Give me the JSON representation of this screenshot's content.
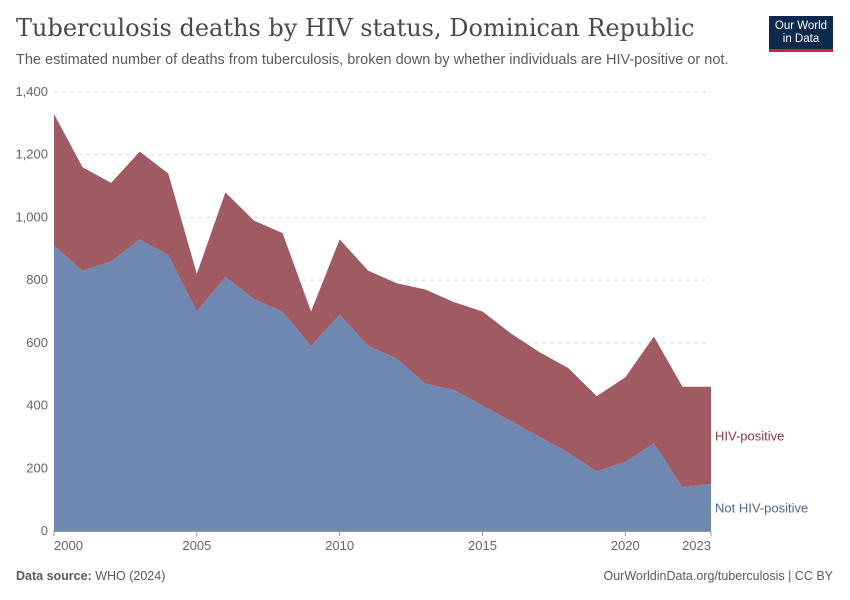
{
  "header": {
    "title": "Tuberculosis deaths by HIV status, Dominican Republic",
    "subtitle": "The estimated number of deaths from tuberculosis, broken down by whether individuals are HIV-positive or not."
  },
  "logo": {
    "line1": "Our World",
    "line2": "in Data"
  },
  "footer": {
    "source_label": "Data source:",
    "source_value": "WHO (2024)",
    "link": "OurWorldinData.org/tuberculosis | CC BY"
  },
  "chart_data": {
    "type": "area",
    "stacked": true,
    "x": [
      2000,
      2001,
      2002,
      2003,
      2004,
      2005,
      2006,
      2007,
      2008,
      2009,
      2010,
      2011,
      2012,
      2013,
      2014,
      2015,
      2016,
      2017,
      2018,
      2019,
      2020,
      2021,
      2022,
      2023
    ],
    "x_ticks": [
      "2000",
      "2005",
      "2010",
      "2015",
      "2020",
      "2023"
    ],
    "x_tick_values": [
      2000,
      2005,
      2010,
      2015,
      2020,
      2023
    ],
    "y_ticks": [
      "0",
      "200",
      "400",
      "600",
      "800",
      "1,000",
      "1,200",
      "1,400"
    ],
    "y_tick_values": [
      0,
      200,
      400,
      600,
      800,
      1000,
      1200,
      1400
    ],
    "ylim": [
      0,
      1400
    ],
    "xlim": [
      2000,
      2023
    ],
    "grid": "horizontal dashed",
    "series": [
      {
        "name": "Not HIV-positive",
        "color": "#6f88b2",
        "values": [
          910,
          830,
          860,
          930,
          880,
          700,
          810,
          740,
          700,
          590,
          690,
          590,
          550,
          470,
          450,
          400,
          350,
          300,
          250,
          190,
          220,
          280,
          140,
          150
        ]
      },
      {
        "name": "HIV-positive",
        "color": "#a05a61",
        "values": [
          420,
          330,
          250,
          280,
          260,
          120,
          270,
          250,
          250,
          110,
          240,
          240,
          240,
          300,
          280,
          300,
          280,
          270,
          270,
          240,
          270,
          340,
          320,
          310
        ]
      }
    ]
  }
}
